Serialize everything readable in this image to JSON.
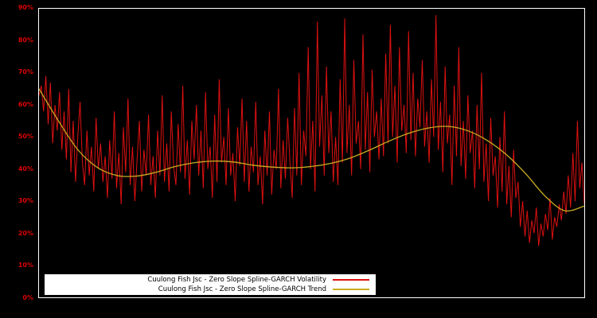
{
  "figure": {
    "background": "#000000",
    "plot_border_color": "#ffffff",
    "tick_label_color": "#dd0000"
  },
  "chart_data": {
    "type": "line",
    "title": "",
    "xlabel": "",
    "ylabel": "",
    "grid": false,
    "y_axis": {
      "min": 0,
      "max": 90,
      "ticks": [
        "0%",
        "10%",
        "20%",
        "30%",
        "40%",
        "50%",
        "60%",
        "70%",
        "80%",
        "90%"
      ]
    },
    "x_axis": {
      "ticks": []
    },
    "legend": {
      "position": "bottom-inside",
      "background": "#ffffff"
    },
    "series": [
      {
        "name": "Cuulong Fish Jsc - Zero Slope Spline-GARCH Volatility",
        "color": "#dd1111",
        "style": "noisy-line",
        "stroke_width": 1,
        "values": [
          63,
          66,
          58,
          69,
          54,
          67,
          48,
          60,
          52,
          64,
          46,
          58,
          43,
          65,
          39,
          55,
          36,
          50,
          61,
          42,
          35,
          52,
          38,
          47,
          33,
          56,
          40,
          48,
          36,
          44,
          31,
          49,
          37,
          58,
          34,
          45,
          29,
          53,
          39,
          62,
          35,
          47,
          30,
          43,
          55,
          33,
          46,
          38,
          57,
          35,
          44,
          31,
          52,
          38,
          63,
          36,
          48,
          33,
          58,
          41,
          35,
          54,
          39,
          66,
          37,
          49,
          32,
          55,
          43,
          60,
          38,
          52,
          34,
          64,
          40,
          47,
          31,
          57,
          36,
          68,
          42,
          50,
          35,
          59,
          38,
          45,
          30,
          53,
          41,
          62,
          36,
          55,
          33,
          47,
          39,
          61,
          35,
          44,
          29,
          52,
          38,
          58,
          32,
          46,
          40,
          65,
          34,
          49,
          37,
          56,
          42,
          31,
          59,
          38,
          70,
          35,
          52,
          44,
          78,
          40,
          55,
          33,
          86,
          47,
          63,
          38,
          72,
          45,
          58,
          36,
          50,
          35,
          68,
          42,
          87,
          45,
          60,
          38,
          74,
          48,
          55,
          40,
          82,
          46,
          64,
          39,
          71,
          50,
          58,
          43,
          62,
          44,
          76,
          48,
          85,
          50,
          66,
          42,
          78,
          52,
          60,
          45,
          83,
          49,
          70,
          44,
          62,
          53,
          74,
          47,
          58,
          42,
          68,
          50,
          88,
          46,
          61,
          39,
          72,
          48,
          57,
          35,
          66,
          44,
          78,
          41,
          55,
          37,
          63,
          45,
          52,
          34,
          60,
          40,
          70,
          36,
          48,
          30,
          56,
          38,
          44,
          28,
          50,
          33,
          58,
          29,
          41,
          25,
          46,
          31,
          36,
          22,
          30,
          19,
          27,
          17,
          24,
          20,
          28,
          16,
          23,
          19,
          26,
          21,
          31,
          18,
          25,
          22,
          29,
          24,
          33,
          26,
          38,
          28,
          45,
          30,
          55,
          34,
          42,
          29
        ]
      },
      {
        "name": "Cuulong Fish Jsc - Zero Slope Spline-GARCH Trend",
        "color": "#c9ac22",
        "style": "smooth-line",
        "stroke_width": 1.3,
        "values": [
          65,
          55,
          46,
          40.5,
          38,
          37.8,
          39,
          40.8,
          42,
          42.5,
          42.2,
          41.2,
          40.6,
          40.4,
          40.8,
          41.8,
          43.5,
          46,
          48.8,
          51.2,
          52.8,
          53.3,
          52,
          49,
          44.5,
          38.5,
          31.5,
          27,
          28.5
        ]
      }
    ]
  }
}
